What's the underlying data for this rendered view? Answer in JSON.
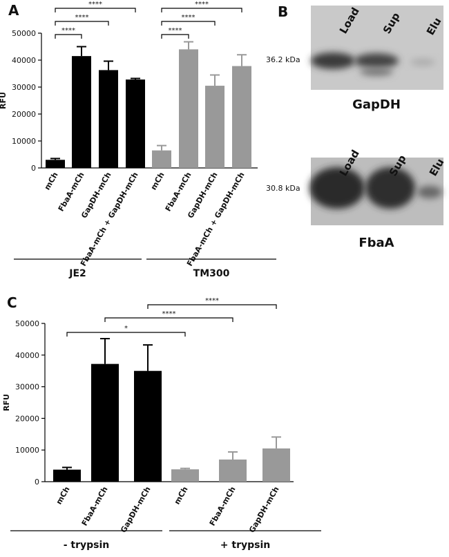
{
  "chart_data": [
    {
      "type": "bar",
      "panel_label": "A",
      "y_label": "RFU",
      "categories": [
        "mCh",
        "FbaA-mCh",
        "GapDH-mCh",
        "FbaA-mCh + GapDH-mCh"
      ],
      "series": [
        {
          "name": "JE2",
          "color": "#000000",
          "values": [
            3000,
            41500,
            36300,
            32800
          ],
          "errors": [
            500,
            3500,
            3300,
            400
          ]
        },
        {
          "name": "TM300",
          "color": "#999999",
          "values": [
            6500,
            44000,
            30500,
            37800
          ],
          "errors": [
            1800,
            2800,
            4000,
            4200
          ]
        }
      ],
      "ylim": [
        0,
        50000
      ],
      "yticks": [
        0,
        10000,
        20000,
        30000,
        40000,
        50000
      ],
      "significance": [
        "****",
        "****",
        "****",
        "****",
        "****",
        "****"
      ]
    },
    {
      "type": "bar",
      "panel_label": "C",
      "y_label": "RFU",
      "categories": [
        "mCh",
        "FbaA-mCh",
        "GapDH-mCh"
      ],
      "series": [
        {
          "name": "- trypsin",
          "color": "#000000",
          "values": [
            3800,
            37200,
            35000
          ],
          "errors": [
            700,
            8000,
            8200
          ]
        },
        {
          "name": "+ trypsin",
          "color": "#999999",
          "values": [
            3900,
            7000,
            10500
          ],
          "errors": [
            300,
            2400,
            3600
          ]
        }
      ],
      "ylim": [
        0,
        50000
      ],
      "yticks": [
        0,
        10000,
        20000,
        30000,
        40000,
        50000
      ],
      "significance": [
        "*",
        "****",
        "****"
      ]
    }
  ],
  "blots": {
    "panel_label": "B",
    "lanes": [
      "Load",
      "Sup",
      "Elu"
    ],
    "gels": [
      {
        "marker": "36.2 kDa",
        "protein": "GapDH"
      },
      {
        "marker": "30.8 kDa",
        "protein": "FbaA"
      }
    ]
  }
}
